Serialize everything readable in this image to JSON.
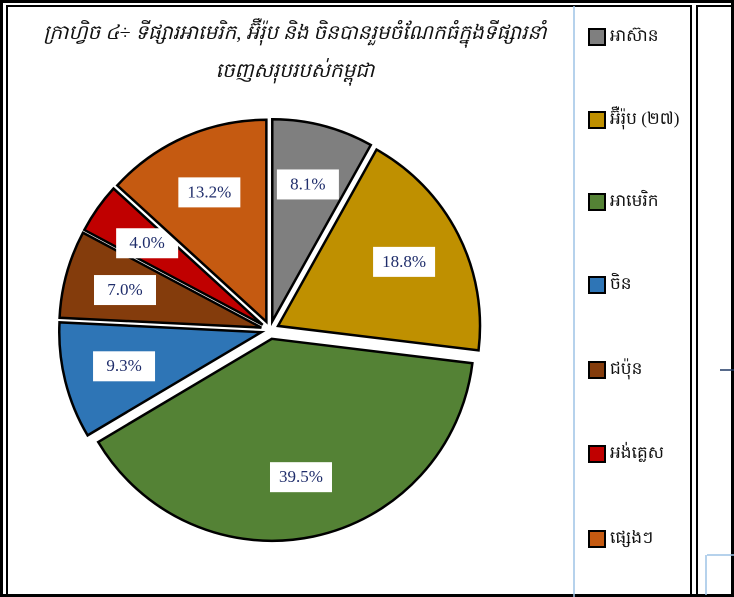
{
  "chart_data": {
    "type": "pie",
    "title": "ក្រាហ្វិច ៤÷ ទីផ្សារអាមេរិក, អ៊ឺរ៉ុប និង ចិនបានរួមចំណែកធំក្នុងទីផ្សារនាំចេញសរុបរបស់កម្ពុជា",
    "categories": [
      "អាស៊ាន",
      "អ៊ឺរ៉ុប (២៧)",
      "អាមេរិក",
      "ចិន",
      "ជប៉ុន",
      "អង់គ្លេស",
      "ផ្សេងៗ"
    ],
    "values": [
      8.1,
      18.8,
      39.5,
      9.3,
      7.0,
      4.0,
      13.2
    ],
    "value_labels": [
      "8.1%",
      "18.8%",
      "39.5%",
      "9.3%",
      "7.0%",
      "4.0%",
      "13.2%"
    ],
    "colors": [
      "#7f7f7f",
      "#bf9000",
      "#548235",
      "#2e75b6",
      "#843c0c",
      "#c00000",
      "#c55a11"
    ],
    "legend": "right"
  }
}
